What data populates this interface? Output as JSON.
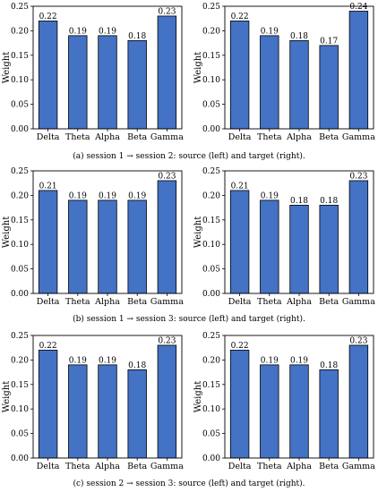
{
  "chart_data": [
    {
      "type": "bar",
      "caption": "(a)  session 1 → session 2: source (left) and target (right).",
      "charts": [
        {
          "categories": [
            "Delta",
            "Theta",
            "Alpha",
            "Beta",
            "Gamma"
          ],
          "values": [
            0.22,
            0.19,
            0.19,
            0.18,
            0.23
          ],
          "value_labels": [
            "0.22",
            "0.19",
            "0.19",
            "0.18",
            "0.23"
          ],
          "ylabel": "Weight",
          "ylim": [
            0,
            0.25
          ],
          "yticks": [
            "0.00",
            "0.05",
            "0.10",
            "0.15",
            "0.20",
            "0.25"
          ],
          "color": "#4472C4"
        },
        {
          "categories": [
            "Delta",
            "Theta",
            "Alpha",
            "Beta",
            "Gamma"
          ],
          "values": [
            0.22,
            0.19,
            0.18,
            0.17,
            0.24
          ],
          "value_labels": [
            "0.22",
            "0.19",
            "0.18",
            "0.17",
            "0.24"
          ],
          "ylabel": "Weight",
          "ylim": [
            0,
            0.25
          ],
          "yticks": [
            "0.00",
            "0.05",
            "0.10",
            "0.15",
            "0.20",
            "0.25"
          ],
          "color": "#4472C4"
        }
      ]
    },
    {
      "type": "bar",
      "caption": "(b)  session 1 → session 3: source (left) and target (right).",
      "charts": [
        {
          "categories": [
            "Delta",
            "Theta",
            "Alpha",
            "Beta",
            "Gamma"
          ],
          "values": [
            0.21,
            0.19,
            0.19,
            0.19,
            0.23
          ],
          "value_labels": [
            "0.21",
            "0.19",
            "0.19",
            "0.19",
            "0.23"
          ],
          "ylabel": "Weight",
          "ylim": [
            0,
            0.25
          ],
          "yticks": [
            "0.00",
            "0.05",
            "0.10",
            "0.15",
            "0.20",
            "0.25"
          ],
          "color": "#4472C4"
        },
        {
          "categories": [
            "Delta",
            "Theta",
            "Alpha",
            "Beta",
            "Gamma"
          ],
          "values": [
            0.21,
            0.19,
            0.18,
            0.18,
            0.23
          ],
          "value_labels": [
            "0.21",
            "0.19",
            "0.18",
            "0.18",
            "0.23"
          ],
          "ylabel": "Weight",
          "ylim": [
            0,
            0.25
          ],
          "yticks": [
            "0.00",
            "0.05",
            "0.10",
            "0.15",
            "0.20",
            "0.25"
          ],
          "color": "#4472C4"
        }
      ]
    },
    {
      "type": "bar",
      "caption": "(c)  session 2 → session 3: source (left) and target (right).",
      "charts": [
        {
          "categories": [
            "Delta",
            "Theta",
            "Alpha",
            "Beta",
            "Gamma"
          ],
          "values": [
            0.22,
            0.19,
            0.19,
            0.18,
            0.23
          ],
          "value_labels": [
            "0.22",
            "0.19",
            "0.19",
            "0.18",
            "0.23"
          ],
          "ylabel": "Weight",
          "ylim": [
            0,
            0.25
          ],
          "yticks": [
            "0.00",
            "0.05",
            "0.10",
            "0.15",
            "0.20",
            "0.25"
          ],
          "color": "#4472C4"
        },
        {
          "categories": [
            "Delta",
            "Theta",
            "Alpha",
            "Beta",
            "Gamma"
          ],
          "values": [
            0.22,
            0.19,
            0.19,
            0.18,
            0.23
          ],
          "value_labels": [
            "0.22",
            "0.19",
            "0.19",
            "0.18",
            "0.23"
          ],
          "ylabel": "Weight",
          "ylim": [
            0,
            0.25
          ],
          "yticks": [
            "0.00",
            "0.05",
            "0.10",
            "0.15",
            "0.20",
            "0.25"
          ],
          "color": "#4472C4"
        }
      ]
    }
  ]
}
